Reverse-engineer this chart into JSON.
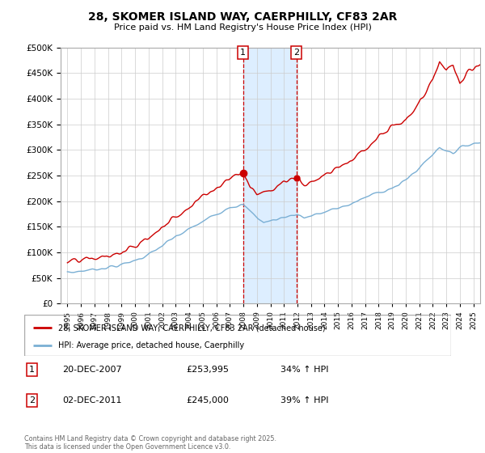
{
  "title": "28, SKOMER ISLAND WAY, CAERPHILLY, CF83 2AR",
  "subtitle": "Price paid vs. HM Land Registry's House Price Index (HPI)",
  "red_label": "28, SKOMER ISLAND WAY, CAERPHILLY, CF83 2AR (detached house)",
  "blue_label": "HPI: Average price, detached house, Caerphilly",
  "marker1_date": "20-DEC-2007",
  "marker1_price": "£253,995",
  "marker1_hpi": "34% ↑ HPI",
  "marker1_year": 2007.97,
  "marker2_date": "02-DEC-2011",
  "marker2_price": "£245,000",
  "marker2_hpi": "39% ↑ HPI",
  "marker2_year": 2011.92,
  "ylim": [
    0,
    500000
  ],
  "xlim_start": 1994.5,
  "xlim_end": 2025.5,
  "yticks": [
    0,
    50000,
    100000,
    150000,
    200000,
    250000,
    300000,
    350000,
    400000,
    450000,
    500000
  ],
  "xticks": [
    1995,
    1996,
    1997,
    1998,
    1999,
    2000,
    2001,
    2002,
    2003,
    2004,
    2005,
    2006,
    2007,
    2008,
    2009,
    2010,
    2011,
    2012,
    2013,
    2014,
    2015,
    2016,
    2017,
    2018,
    2019,
    2020,
    2021,
    2022,
    2023,
    2024,
    2025
  ],
  "red_color": "#cc0000",
  "blue_color": "#7aafd4",
  "shading_color": "#ddeeff",
  "footer": "Contains HM Land Registry data © Crown copyright and database right 2025.\nThis data is licensed under the Open Government Licence v3.0.",
  "bg_color": "#f0f4f8"
}
